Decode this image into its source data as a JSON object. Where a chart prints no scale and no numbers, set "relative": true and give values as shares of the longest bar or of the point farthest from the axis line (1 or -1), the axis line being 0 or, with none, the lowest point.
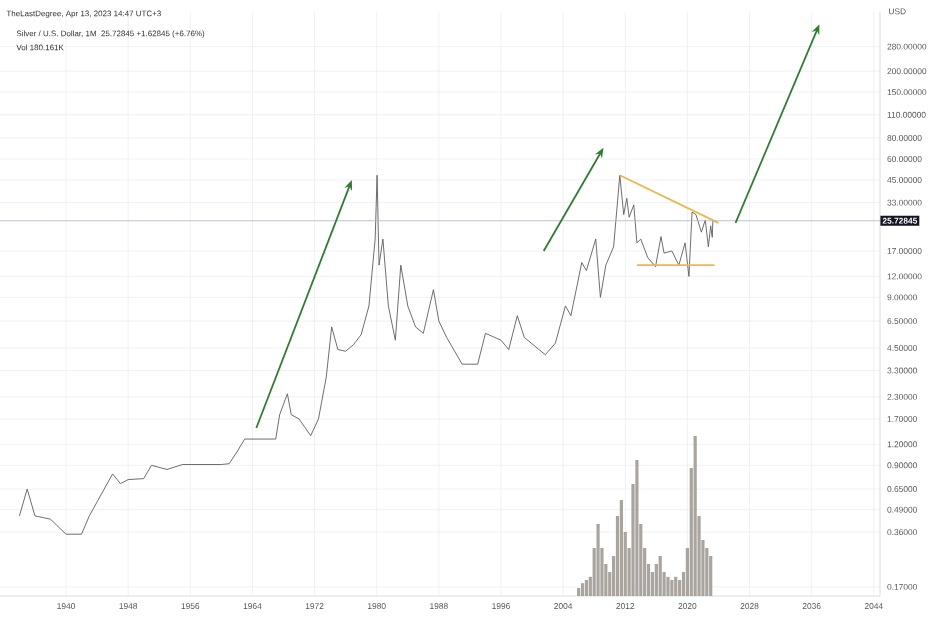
{
  "chart_data": [
    {
      "type": "line",
      "title": "Silver / U.S. Dollar, 1M",
      "subtitle": "25.72845 +1.62845 (+6.76%)",
      "annotations": [
        "TheLastDegree, Apr 13, 2023 14:47 UTC+3",
        "Vol 180.161K"
      ],
      "ylabel": "USD",
      "log": "y",
      "grid": true,
      "xlim": [
        1931.5,
        2044.8
      ],
      "ylim": [
        0.15,
        450
      ],
      "xticks": [
        1940,
        1948,
        1956,
        1964,
        1972,
        1980,
        1988,
        1996,
        2004,
        2012,
        2020,
        2028,
        2036,
        2044
      ],
      "yticks": [
        {
          "value": 0.17,
          "label": "0.17000"
        },
        {
          "value": 0.36,
          "label": "0.36000"
        },
        {
          "value": 0.49,
          "label": "0.49000"
        },
        {
          "value": 0.65,
          "label": "0.65000"
        },
        {
          "value": 0.9,
          "label": "0.90000"
        },
        {
          "value": 1.2,
          "label": "1.20000"
        },
        {
          "value": 1.7,
          "label": "1.70000"
        },
        {
          "value": 2.3,
          "label": "2.30000"
        },
        {
          "value": 3.3,
          "label": "3.30000"
        },
        {
          "value": 4.5,
          "label": "4.50000"
        },
        {
          "value": 6.5,
          "label": "6.50000"
        },
        {
          "value": 9,
          "label": "9.00000"
        },
        {
          "value": 12,
          "label": "12.00000"
        },
        {
          "value": 17,
          "label": "17.00000"
        },
        {
          "value": 33,
          "label": "33.00000"
        },
        {
          "value": 45,
          "label": "45.00000"
        },
        {
          "value": 60,
          "label": "60.00000"
        },
        {
          "value": 80,
          "label": "80.00000"
        },
        {
          "value": 110,
          "label": "110.00000"
        },
        {
          "value": 150,
          "label": "150.00000"
        },
        {
          "value": 200,
          "label": "200.00000"
        },
        {
          "value": 280,
          "label": "280.00000"
        }
      ],
      "ref_lines": [
        {
          "axis": "y",
          "value": 25.72845,
          "label": "25.72845",
          "color": "#b2b5be"
        }
      ],
      "series": [
        {
          "color": "#5d5d5d",
          "x": [
            1934,
            1935,
            1936,
            1938,
            1940,
            1942,
            1943,
            1946,
            1947,
            1948,
            1950,
            1951,
            1953,
            1955,
            1960,
            1961,
            1962,
            1963,
            1967,
            1967.5,
            1968.5,
            1969,
            1970,
            1971.5,
            1972.5,
            1973.5,
            1974.2,
            1975,
            1976,
            1977,
            1978,
            1979,
            1979.8,
            1980.05,
            1980.3,
            1980.8,
            1981.5,
            1982.4,
            1983.1,
            1984,
            1985,
            1986,
            1987.3,
            1988,
            1989,
            1991,
            1993,
            1994,
            1996,
            1997,
            1998.1,
            1999,
            2001.7,
            2003,
            2004.3,
            2005,
            2006.4,
            2007,
            2008.2,
            2008.8,
            2009.5,
            2010.5,
            2011.3,
            2011.8,
            2012.2,
            2012.5,
            2013.1,
            2013.5,
            2014,
            2014.9,
            2015.9,
            2016.6,
            2017,
            2018,
            2018.9,
            2019.7,
            2020.2,
            2020.6,
            2021.1,
            2021.8,
            2022.3,
            2022.7,
            2023,
            2023.2,
            2023.28
          ],
          "values": [
            0.45,
            0.65,
            0.45,
            0.43,
            0.35,
            0.35,
            0.45,
            0.8,
            0.7,
            0.74,
            0.75,
            0.9,
            0.85,
            0.91,
            0.91,
            0.92,
            1.08,
            1.29,
            1.29,
            1.8,
            2.4,
            1.8,
            1.7,
            1.35,
            1.7,
            3,
            6,
            4.4,
            4.3,
            4.7,
            5.4,
            8,
            20,
            48,
            14,
            20,
            8,
            5,
            14,
            8,
            6,
            5.5,
            10,
            6.5,
            5.2,
            3.6,
            3.6,
            5.5,
            5,
            4.4,
            7,
            5.2,
            4.1,
            4.8,
            8,
            7,
            14.5,
            13,
            20,
            9,
            14,
            18,
            48,
            28,
            35,
            27,
            32,
            19,
            20,
            15.5,
            13.7,
            20.7,
            16.5,
            17,
            14,
            19,
            12,
            29,
            28,
            22,
            26,
            18,
            24,
            20.5,
            25.72845
          ]
        },
        {
          "color": "#f0b64a",
          "x": [
            2011.3,
            2024
          ],
          "values": [
            48,
            25
          ]
        },
        {
          "color": "#f0b64a",
          "x": [
            2013.5,
            2023.5
          ],
          "values": [
            14,
            14
          ]
        }
      ]
    },
    {
      "type": "bar",
      "relative": true,
      "xlim": [
        1931.5,
        2044.8
      ],
      "color": "#a9a49d",
      "x": [
        2006,
        2006.5,
        2007,
        2007.5,
        2008,
        2008.5,
        2009,
        2009.5,
        2010,
        2010.5,
        2011,
        2011.5,
        2012,
        2012.5,
        2013,
        2013.5,
        2014,
        2014.5,
        2015,
        2015.5,
        2016,
        2016.5,
        2017,
        2017.5,
        2018,
        2018.5,
        2019,
        2019.5,
        2020,
        2020.5,
        2021,
        2021.5,
        2022,
        2022.5,
        2023
      ],
      "values": [
        0.05,
        0.08,
        0.1,
        0.12,
        0.3,
        0.45,
        0.3,
        0.2,
        0.15,
        0.25,
        0.5,
        0.6,
        0.4,
        0.3,
        0.7,
        0.85,
        0.45,
        0.3,
        0.2,
        0.15,
        0.2,
        0.25,
        0.15,
        0.12,
        0.1,
        0.12,
        0.1,
        0.15,
        0.3,
        0.8,
        1.0,
        0.5,
        0.35,
        0.3,
        0.25
      ]
    }
  ]
}
